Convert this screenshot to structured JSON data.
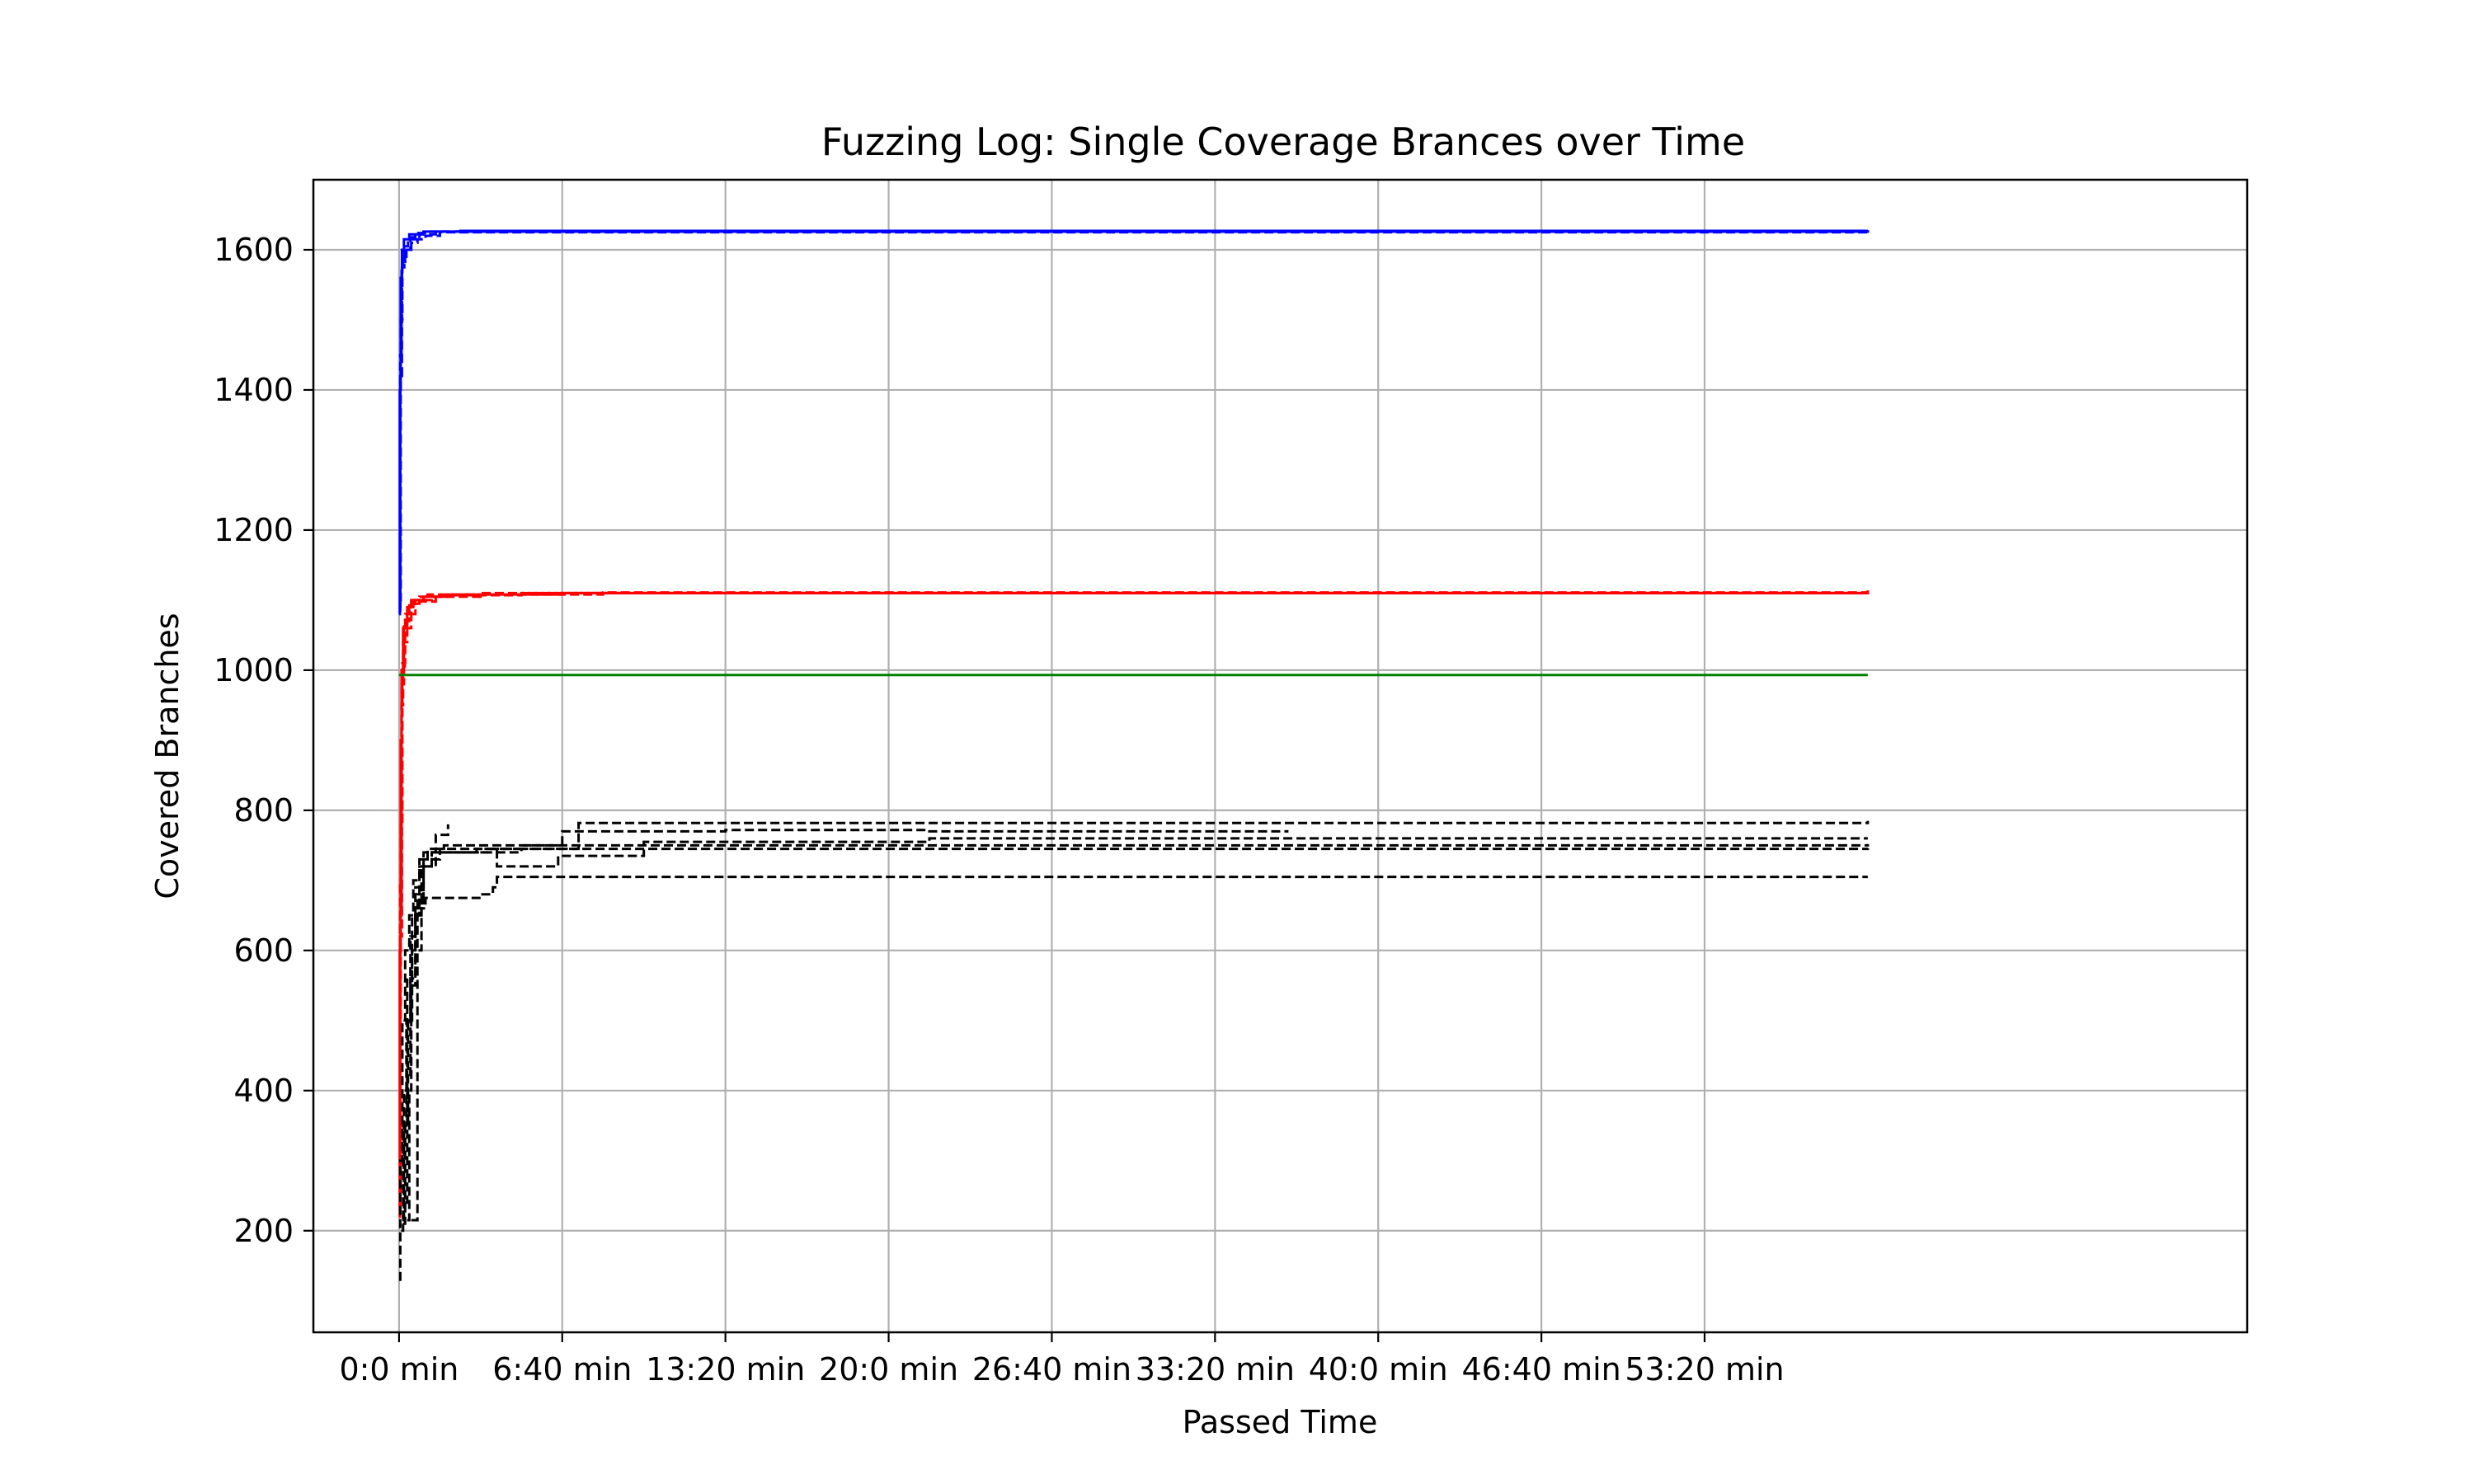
{
  "chart_data": {
    "type": "line",
    "title": "Fuzzing Log: Single Coverage Brances over Time",
    "xlabel": "Passed Time",
    "ylabel": "Covered Branches",
    "x_unit": "seconds",
    "xlim": [
      -210,
      4530
    ],
    "ylim": [
      55,
      1700
    ],
    "grid": true,
    "x_ticks": [
      {
        "value": 0,
        "label": "0:0 min"
      },
      {
        "value": 400,
        "label": "6:40 min"
      },
      {
        "value": 800,
        "label": "13:20 min"
      },
      {
        "value": 1200,
        "label": "20:0 min"
      },
      {
        "value": 1600,
        "label": "26:40 min"
      },
      {
        "value": 2000,
        "label": "33:20 min"
      },
      {
        "value": 2400,
        "label": "40:0 min"
      },
      {
        "value": 2800,
        "label": "46:40 min"
      },
      {
        "value": 3200,
        "label": "53:20 min"
      }
    ],
    "y_ticks": [
      {
        "value": 200,
        "label": "200"
      },
      {
        "value": 400,
        "label": "400"
      },
      {
        "value": 600,
        "label": "600"
      },
      {
        "value": 800,
        "label": "800"
      },
      {
        "value": 1000,
        "label": "1000"
      },
      {
        "value": 1200,
        "label": "1200"
      },
      {
        "value": 1400,
        "label": "1400"
      },
      {
        "value": 1600,
        "label": "1600"
      }
    ],
    "series": [
      {
        "color": "#0000ff",
        "style": "solid",
        "points": [
          [
            0,
            1080
          ],
          [
            2,
            1400
          ],
          [
            4,
            1560
          ],
          [
            7,
            1600
          ],
          [
            12,
            1615
          ],
          [
            25,
            1622
          ],
          [
            60,
            1626
          ],
          [
            150,
            1627
          ],
          [
            3600,
            1628
          ]
        ]
      },
      {
        "color": "#0000ff",
        "style": "dashed",
        "points": [
          [
            0,
            1090
          ],
          [
            3,
            1450
          ],
          [
            6,
            1570
          ],
          [
            10,
            1590
          ],
          [
            18,
            1600
          ],
          [
            30,
            1610
          ],
          [
            45,
            1615
          ],
          [
            65,
            1620
          ],
          [
            100,
            1625
          ],
          [
            3600,
            1627
          ]
        ]
      },
      {
        "color": "#0000ff",
        "style": "dashed",
        "points": [
          [
            0,
            1100
          ],
          [
            4,
            1500
          ],
          [
            8,
            1580
          ],
          [
            15,
            1600
          ],
          [
            28,
            1615
          ],
          [
            50,
            1622
          ],
          [
            90,
            1626
          ],
          [
            3600,
            1628
          ]
        ]
      },
      {
        "color": "#0000ff",
        "style": "dashed",
        "points": [
          [
            0,
            1085
          ],
          [
            3,
            1420
          ],
          [
            7,
            1575
          ],
          [
            13,
            1605
          ],
          [
            22,
            1618
          ],
          [
            40,
            1624
          ],
          [
            70,
            1626
          ],
          [
            3600,
            1627
          ]
        ]
      },
      {
        "color": "#ff0000",
        "style": "solid",
        "points": [
          [
            0,
            220
          ],
          [
            2,
            600
          ],
          [
            4,
            900
          ],
          [
            6,
            1000
          ],
          [
            10,
            1060
          ],
          [
            20,
            1090
          ],
          [
            35,
            1100
          ],
          [
            60,
            1105
          ],
          [
            120,
            1108
          ],
          [
            400,
            1110
          ],
          [
            3600,
            1112
          ]
        ]
      },
      {
        "color": "#ff0000",
        "style": "dashed",
        "points": [
          [
            0,
            250
          ],
          [
            3,
            700
          ],
          [
            6,
            950
          ],
          [
            10,
            1040
          ],
          [
            20,
            1080
          ],
          [
            40,
            1100
          ],
          [
            80,
            1105
          ],
          [
            120,
            1106
          ]
        ]
      },
      {
        "color": "#ff0000",
        "style": "dashed",
        "points": [
          [
            0,
            230
          ],
          [
            3,
            650
          ],
          [
            6,
            980
          ],
          [
            12,
            1070
          ],
          [
            25,
            1095
          ],
          [
            50,
            1105
          ],
          [
            200,
            1110
          ],
          [
            3600,
            1113
          ]
        ]
      },
      {
        "color": "#ff0000",
        "style": "dashed",
        "points": [
          [
            0,
            260
          ],
          [
            4,
            780
          ],
          [
            8,
            1010
          ],
          [
            15,
            1080
          ],
          [
            30,
            1100
          ],
          [
            70,
            1108
          ],
          [
            500,
            1111
          ],
          [
            3600,
            1114
          ]
        ]
      },
      {
        "color": "#ff0000",
        "style": "dashed",
        "points": [
          [
            0,
            240
          ],
          [
            3,
            620
          ],
          [
            7,
            1000
          ],
          [
            14,
            1060
          ],
          [
            30,
            1098
          ],
          [
            90,
            1107
          ],
          [
            300,
            1110
          ],
          [
            3600,
            1112
          ]
        ]
      },
      {
        "color": "#008000",
        "style": "solid",
        "points": [
          [
            0,
            993
          ],
          [
            3600,
            993
          ]
        ]
      },
      {
        "color": "#000000",
        "style": "dashed",
        "points": [
          [
            0,
            130
          ],
          [
            3,
            300
          ],
          [
            8,
            500
          ],
          [
            15,
            600
          ],
          [
            25,
            650
          ],
          [
            35,
            700
          ],
          [
            50,
            730
          ],
          [
            70,
            745
          ],
          [
            110,
            750
          ],
          [
            3600,
            752
          ]
        ]
      },
      {
        "color": "#000000",
        "style": "dashed",
        "points": [
          [
            5,
            200
          ],
          [
            10,
            350
          ],
          [
            18,
            500
          ],
          [
            28,
            620
          ],
          [
            40,
            690
          ],
          [
            60,
            740
          ],
          [
            90,
            765
          ],
          [
            120,
            780
          ]
        ]
      },
      {
        "color": "#000000",
        "style": "dashed",
        "points": [
          [
            10,
            210
          ],
          [
            15,
            350
          ],
          [
            22,
            500
          ],
          [
            32,
            600
          ],
          [
            45,
            680
          ],
          [
            60,
            720
          ],
          [
            80,
            740
          ],
          [
            220,
            745
          ],
          [
            3600,
            746
          ]
        ]
      },
      {
        "color": "#000000",
        "style": "dashed",
        "points": [
          [
            30,
            215
          ],
          [
            35,
            215
          ],
          [
            40,
            215
          ],
          [
            45,
            600
          ],
          [
            55,
            660
          ],
          [
            65,
            675
          ],
          [
            200,
            680
          ],
          [
            230,
            690
          ],
          [
            240,
            705
          ],
          [
            3600,
            705
          ]
        ]
      },
      {
        "color": "#000000",
        "style": "dashed",
        "points": [
          [
            20,
            215
          ],
          [
            25,
            400
          ],
          [
            30,
            550
          ],
          [
            40,
            650
          ],
          [
            55,
            720
          ],
          [
            90,
            740
          ],
          [
            190,
            745
          ],
          [
            240,
            720
          ],
          [
            390,
            735
          ],
          [
            600,
            755
          ],
          [
            1300,
            760
          ],
          [
            3600,
            760
          ]
        ]
      },
      {
        "color": "#000000",
        "style": "dashed",
        "points": [
          [
            15,
            240
          ],
          [
            20,
            420
          ],
          [
            28,
            560
          ],
          [
            40,
            660
          ],
          [
            60,
            730
          ],
          [
            100,
            745
          ],
          [
            300,
            750
          ],
          [
            400,
            770
          ],
          [
            800,
            772
          ],
          [
            1300,
            770
          ],
          [
            2180,
            770
          ]
        ]
      },
      {
        "color": "#000000",
        "style": "dashed",
        "points": [
          [
            8,
            215
          ],
          [
            12,
            400
          ],
          [
            20,
            560
          ],
          [
            32,
            650
          ],
          [
            50,
            720
          ],
          [
            80,
            740
          ],
          [
            300,
            745
          ],
          [
            440,
            782
          ],
          [
            3600,
            785
          ]
        ]
      }
    ]
  }
}
